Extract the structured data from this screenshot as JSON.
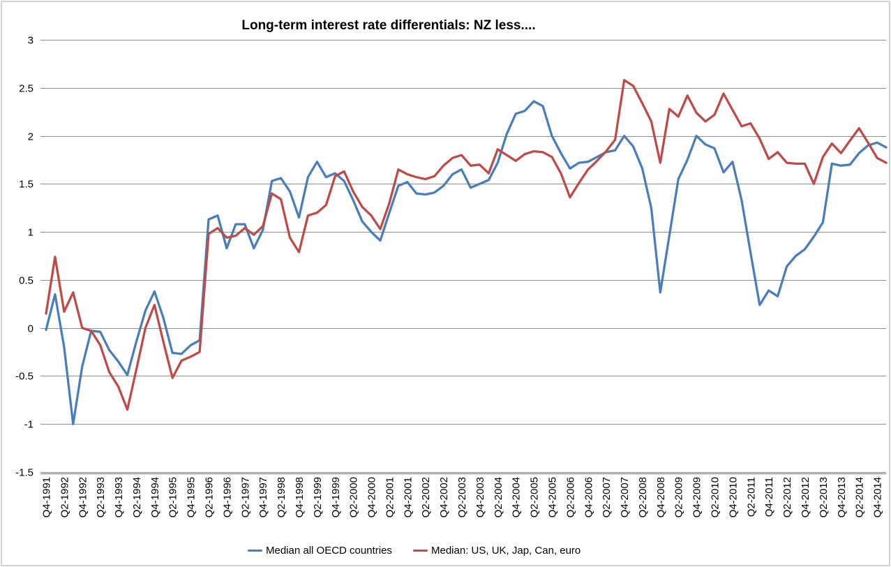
{
  "chart_data": {
    "type": "line",
    "title": "Long-term interest rate differentials: NZ less....",
    "background_color": "#ffffff",
    "gridline_color": "#8e8e8e",
    "axis_color": "#7f7f7f",
    "grid": "horizontal-only",
    "legend_position": "bottom-center",
    "ylim": [
      -1.5,
      3
    ],
    "ytick_values": [
      3,
      2.5,
      2,
      1.5,
      1,
      0.5,
      0,
      -0.5,
      -1,
      -1.5
    ],
    "ytick_labels": [
      "3",
      "2.5",
      "2",
      "1.5",
      "1",
      "0.5",
      "0",
      "-0.5",
      "-1",
      "-1.5"
    ],
    "n_points": 94,
    "x_start_quarter": "Q4-1991",
    "x_end_quarter": "Q1-2015",
    "x_tick_every": 2,
    "x_tick_labels": [
      "Q4-1991",
      "Q2-1992",
      "Q4-1992",
      "Q2-1993",
      "Q4-1993",
      "Q2-1994",
      "Q4-1994",
      "Q2-1995",
      "Q4-1995",
      "Q2-1996",
      "Q4-1996",
      "Q2-1997",
      "Q4-1997",
      "Q2-1998",
      "Q4-1998",
      "Q2-1999",
      "Q4-1999",
      "Q2-2000",
      "Q4-2000",
      "Q2-2001",
      "Q4-2001",
      "Q2-2002",
      "Q4-2002",
      "Q2-2003",
      "Q4-2003",
      "Q2-2004",
      "Q4-2004",
      "Q2-2005",
      "Q4-2005",
      "Q2-2006",
      "Q4-2006",
      "Q2-2007",
      "Q4-2007",
      "Q2-2008",
      "Q4-2008",
      "Q2-2009",
      "Q4-2009",
      "Q2-2010",
      "Q4-2010",
      "Q2-2011",
      "Q4-2011",
      "Q2-2012",
      "Q4-2012",
      "Q2-2013",
      "Q4-2013",
      "Q2-2014",
      "Q4-2014"
    ],
    "series": [
      {
        "id": "oecd-median",
        "name": "Median all OECD countries",
        "color": "#4A7EBB",
        "values": [
          -0.02,
          0.35,
          -0.2,
          -1.0,
          -0.4,
          -0.03,
          -0.04,
          -0.23,
          -0.35,
          -0.49,
          -0.14,
          0.18,
          0.38,
          0.1,
          -0.26,
          -0.27,
          -0.18,
          -0.13,
          1.13,
          1.17,
          0.83,
          1.08,
          1.08,
          0.83,
          1.02,
          1.53,
          1.56,
          1.42,
          1.15,
          1.57,
          1.73,
          1.57,
          1.61,
          1.53,
          1.33,
          1.11,
          1.0,
          0.91,
          1.2,
          1.48,
          1.52,
          1.4,
          1.39,
          1.41,
          1.48,
          1.6,
          1.65,
          1.46,
          1.5,
          1.54,
          1.72,
          2.02,
          2.23,
          2.26,
          2.36,
          2.31,
          2.0,
          1.82,
          1.66,
          1.72,
          1.73,
          1.78,
          1.83,
          1.85,
          2.0,
          1.89,
          1.66,
          1.25,
          0.37,
          0.96,
          1.55,
          1.75,
          2.0,
          1.91,
          1.87,
          1.62,
          1.73,
          1.33,
          0.78,
          0.24,
          0.39,
          0.33,
          0.64,
          0.75,
          0.82,
          0.95,
          1.1,
          1.71,
          1.69,
          1.7,
          1.82,
          1.9,
          1.93,
          1.88
        ]
      },
      {
        "id": "us-uk-jap-can-euro-median",
        "name": "Median: US, UK, Jap, Can, euro",
        "color": "#BE4B48",
        "values": [
          0.15,
          0.74,
          0.17,
          0.37,
          0.0,
          -0.03,
          -0.18,
          -0.46,
          -0.61,
          -0.85,
          -0.43,
          0.0,
          0.24,
          -0.15,
          -0.52,
          -0.34,
          -0.3,
          -0.25,
          0.98,
          1.04,
          0.94,
          0.96,
          1.04,
          0.97,
          1.06,
          1.4,
          1.34,
          0.94,
          0.79,
          1.17,
          1.2,
          1.28,
          1.58,
          1.63,
          1.42,
          1.26,
          1.17,
          1.03,
          1.3,
          1.65,
          1.6,
          1.57,
          1.55,
          1.58,
          1.69,
          1.77,
          1.8,
          1.69,
          1.7,
          1.61,
          1.86,
          1.8,
          1.74,
          1.81,
          1.84,
          1.83,
          1.78,
          1.61,
          1.36,
          1.51,
          1.65,
          1.74,
          1.84,
          1.96,
          2.58,
          2.52,
          2.34,
          2.15,
          1.72,
          2.28,
          2.2,
          2.42,
          2.24,
          2.15,
          2.22,
          2.44,
          2.27,
          2.1,
          2.13,
          1.97,
          1.76,
          1.83,
          1.72,
          1.71,
          1.71,
          1.5,
          1.78,
          1.92,
          1.82,
          1.95,
          2.08,
          1.93,
          1.77,
          1.72
        ]
      }
    ]
  },
  "legend": {
    "items": [
      {
        "label": "Median all OECD countries",
        "color": "#4A7EBB"
      },
      {
        "label": "Median: US, UK, Jap, Can, euro",
        "color": "#BE4B48"
      }
    ]
  }
}
